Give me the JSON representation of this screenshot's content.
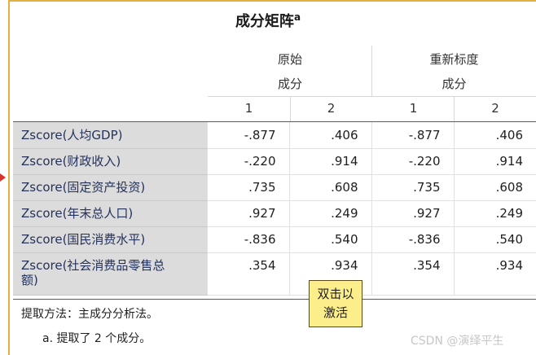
{
  "table": {
    "title": "成分矩阵",
    "title_sup": "a",
    "group_original": {
      "line1": "原始",
      "line2": "成分"
    },
    "group_rescaled": {
      "line1": "重新标度",
      "line2": "成分"
    },
    "component_headers": [
      "1",
      "2",
      "1",
      "2"
    ],
    "rows": [
      {
        "label": "Zscore(人均GDP)",
        "values": [
          "-.877",
          ".406",
          "-.877",
          ".406"
        ]
      },
      {
        "label": "Zscore(财政收入)",
        "values": [
          "-.220",
          ".914",
          "-.220",
          ".914"
        ]
      },
      {
        "label": "Zscore(固定资产投资)",
        "values": [
          ".735",
          ".608",
          ".735",
          ".608"
        ]
      },
      {
        "label": "Zscore(年末总人口)",
        "values": [
          ".927",
          ".249",
          ".927",
          ".249"
        ]
      },
      {
        "label": "Zscore(国民消费水平)",
        "values": [
          "-.836",
          ".540",
          "-.836",
          ".540"
        ]
      },
      {
        "label_line1": "Zscore(社会消费品零售总",
        "label_line2": "额)",
        "values": [
          ".354",
          ".934",
          ".354",
          ".934"
        ]
      }
    ],
    "footnote_method": "提取方法：主成分分析法。",
    "footnote_a": "a. 提取了 2 个成分。"
  },
  "tooltip": {
    "line1": "双击以",
    "line2": "激活"
  },
  "watermark": "CSDN @演绎平生",
  "colors": {
    "label_bg": "#dcdcdc",
    "label_text": "#24325c",
    "tooltip_bg": "#fdee8c",
    "frame_border": "#e0b040",
    "marker": "#d9342b"
  }
}
